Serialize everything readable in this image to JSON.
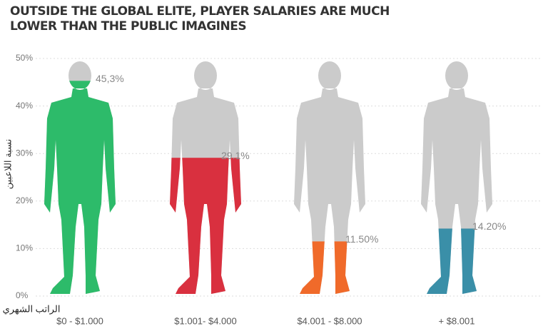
{
  "chart_data": {
    "type": "pictograph",
    "title": "OUTSIDE THE GLOBAL ELITE, PLAYER SALARIES ARE MUCH LOWER THAN THE PUBLIC IMAGINES",
    "y_label": "نسبة اللاعبين",
    "x_label": "الراتب الشهري",
    "categories": [
      "$0 - $1.000",
      "$1.001- $4.000",
      "$4.001 - $8.000",
      "+ $8.001"
    ],
    "values": [
      45.3,
      29.1,
      11.5,
      14.2
    ],
    "value_labels": [
      "45,3%",
      "29.1%",
      "11.50%",
      "14.20%"
    ],
    "colors": [
      "#2dbb6a",
      "#d9303f",
      "#f06a2a",
      "#3a8fa8"
    ],
    "ylim": [
      0,
      50
    ],
    "yticks": [
      {
        "value": 0,
        "label": "0%"
      },
      {
        "value": 10,
        "label": "10%"
      },
      {
        "value": 20,
        "label": "20%"
      },
      {
        "value": 30,
        "label": "30%"
      },
      {
        "value": 40,
        "label": "40%"
      },
      {
        "value": 50,
        "label": "50%"
      }
    ],
    "grid": true
  }
}
